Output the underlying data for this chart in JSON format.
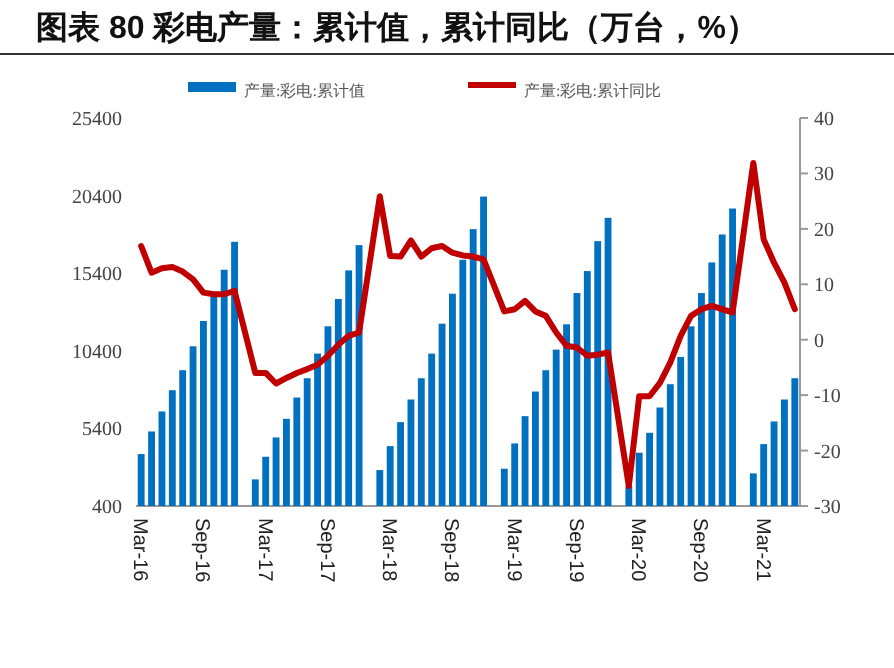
{
  "chart_data": {
    "type": "bar",
    "title": "图表 80 彩电产量：累计值，累计同比（万台，%）",
    "categories": [
      "Mar-16",
      null,
      null,
      null,
      null,
      null,
      "Sep-16",
      null,
      null,
      null,
      null,
      null,
      "Mar-17",
      null,
      null,
      null,
      null,
      null,
      "Sep-17",
      null,
      null,
      null,
      null,
      null,
      "Mar-18",
      null,
      null,
      null,
      null,
      null,
      "Sep-18",
      null,
      null,
      null,
      null,
      null,
      "Mar-19",
      null,
      null,
      null,
      null,
      null,
      "Sep-19",
      null,
      null,
      null,
      null,
      null,
      "Mar-20",
      null,
      null,
      null,
      null,
      null,
      "Sep-20",
      null,
      null,
      null,
      null,
      null,
      "Mar-21",
      null,
      null,
      null
    ],
    "series": [
      {
        "name": "产量:彩电:累计值",
        "color": "#0070c0",
        "values": [
          3745,
          5203,
          6489,
          7861,
          9148,
          10691,
          12321,
          13907,
          15622,
          17423,
          null,
          2115,
          3573,
          4817,
          6017,
          7389,
          8633,
          10220,
          11978,
          13736,
          15580,
          17210,
          null,
          2716,
          4259,
          5803,
          7261,
          8633,
          10220,
          12149,
          14079,
          16266,
          18238,
          20339,
          null,
          2801,
          4431,
          6189,
          7775,
          9148,
          10477,
          12106,
          14122,
          15537,
          17466,
          18967,
          null,
          1686,
          3830,
          5117,
          6746,
          8247,
          10005,
          11978,
          14122,
          16094,
          17895,
          19567,
          null,
          2501,
          4388,
          5846,
          7261,
          8633
        ]
      },
      {
        "name": "产量:彩电:累计同比",
        "type": "line",
        "axis": "y2",
        "color": "#c00000",
        "values": [
          16.9,
          12.1,
          12.9,
          13.1,
          12.3,
          10.9,
          8.5,
          8.2,
          8.2,
          8.8,
          null,
          -6.0,
          -6.0,
          -7.9,
          -6.9,
          -6.0,
          -5.3,
          -4.5,
          -2.9,
          -0.9,
          0.7,
          1.3,
          null,
          25.9,
          15.1,
          15.0,
          17.9,
          15.0,
          16.5,
          16.9,
          15.7,
          15.2,
          15.0,
          14.5,
          null,
          5.1,
          5.5,
          7.0,
          5.1,
          4.3,
          1.3,
          -1.1,
          -1.4,
          -2.9,
          -2.7,
          -2.3,
          null,
          -26.4,
          -10.2,
          -10.2,
          -7.8,
          -4.1,
          0.7,
          4.3,
          5.5,
          6.1,
          5.5,
          4.9,
          null,
          31.9,
          18.1,
          13.9,
          10.3,
          5.5
        ]
      }
    ],
    "ylim": [
      400,
      25400
    ],
    "yticks": [
      400,
      5400,
      10400,
      15400,
      20400,
      25400
    ],
    "y2lim": [
      -30,
      40
    ],
    "y2ticks": [
      -30,
      -20,
      -10,
      0,
      10,
      20,
      30,
      40
    ],
    "legend": "top"
  }
}
